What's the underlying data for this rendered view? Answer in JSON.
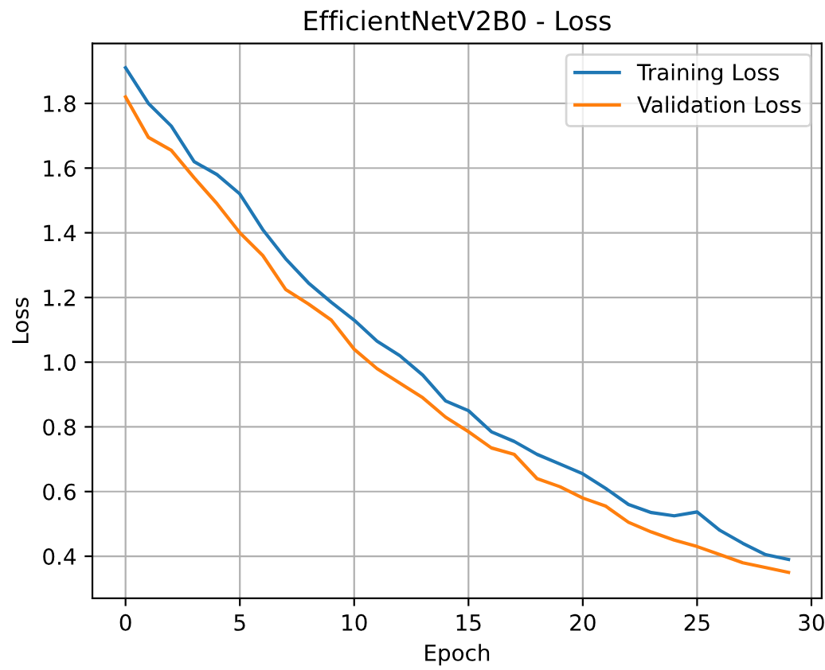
{
  "chart_data": {
    "type": "line",
    "title": "EfficientNetV2B0 - Loss",
    "xlabel": "Epoch",
    "ylabel": "Loss",
    "x": [
      0,
      1,
      2,
      3,
      4,
      5,
      6,
      7,
      8,
      9,
      10,
      11,
      12,
      13,
      14,
      15,
      16,
      17,
      18,
      19,
      20,
      21,
      22,
      23,
      24,
      25,
      26,
      27,
      28,
      29
    ],
    "series": [
      {
        "name": "Training Loss",
        "color": "#1f77b4",
        "values": [
          1.91,
          1.8,
          1.73,
          1.62,
          1.58,
          1.52,
          1.41,
          1.32,
          1.245,
          1.185,
          1.13,
          1.065,
          1.02,
          0.96,
          0.88,
          0.85,
          0.785,
          0.755,
          0.715,
          0.685,
          0.655,
          0.61,
          0.56,
          0.535,
          0.525,
          0.537,
          0.48,
          0.44,
          0.405,
          0.39
        ]
      },
      {
        "name": "Validation Loss",
        "color": "#ff7f0e",
        "values": [
          1.82,
          1.695,
          1.655,
          1.57,
          1.49,
          1.4,
          1.33,
          1.225,
          1.18,
          1.13,
          1.04,
          0.98,
          0.935,
          0.89,
          0.83,
          0.785,
          0.735,
          0.715,
          0.64,
          0.615,
          0.58,
          0.555,
          0.505,
          0.475,
          0.45,
          0.43,
          0.405,
          0.38,
          0.365,
          0.35
        ]
      }
    ],
    "xlim": [
      -1.45,
      30.45
    ],
    "ylim": [
      0.27,
      1.985
    ],
    "xticks": [
      0,
      5,
      10,
      15,
      20,
      25,
      30
    ],
    "yticks": [
      {
        "value": 0.4,
        "label": "0.4"
      },
      {
        "value": 0.6,
        "label": "0.6"
      },
      {
        "value": 0.8,
        "label": "0.8"
      },
      {
        "value": 1.0,
        "label": "1.0"
      },
      {
        "value": 1.2,
        "label": "1.2"
      },
      {
        "value": 1.4,
        "label": "1.4"
      },
      {
        "value": 1.6,
        "label": "1.6"
      },
      {
        "value": 1.8,
        "label": "1.8"
      }
    ],
    "grid": true,
    "legend": "top right",
    "marker": "none",
    "line_style": "solid"
  }
}
